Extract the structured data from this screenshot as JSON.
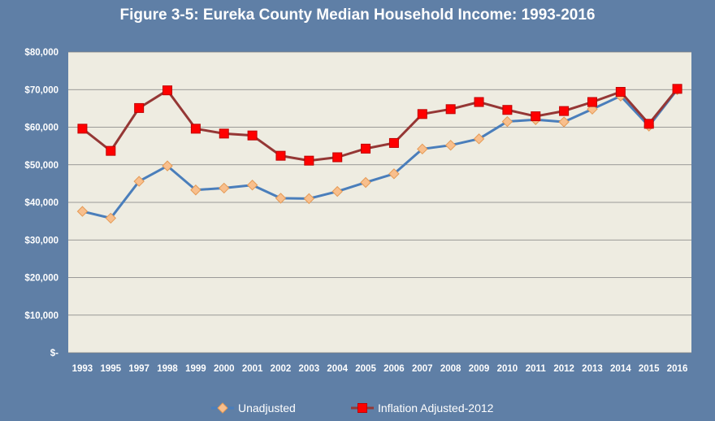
{
  "chart_data": {
    "type": "line",
    "title": "Figure 3-5: Eureka County Median Household Income: 1993-2016",
    "categories": [
      "1993",
      "1995",
      "1997",
      "1998",
      "1999",
      "2000",
      "2001",
      "2002",
      "2003",
      "2004",
      "2005",
      "2006",
      "2007",
      "2008",
      "2009",
      "2010",
      "2011",
      "2012",
      "2013",
      "2014",
      "2015",
      "2016"
    ],
    "y_ticks": [
      "$-",
      "$10,000",
      "$20,000",
      "$30,000",
      "$40,000",
      "$50,000",
      "$60,000",
      "$70,000",
      "$80,000"
    ],
    "ylim": [
      0,
      80000
    ],
    "grid": true,
    "legend_position": "bottom",
    "series": [
      {
        "name": "Unadjusted",
        "line_color": "#4a7ebb",
        "marker": "diamond",
        "marker_fill": "#f8bf8d",
        "marker_stroke": "#e59a55",
        "values": [
          37600,
          35800,
          45600,
          49700,
          43300,
          43800,
          44600,
          41100,
          41000,
          42900,
          45300,
          47600,
          54200,
          55200,
          56900,
          61500,
          62000,
          61400,
          64800,
          68300,
          60300,
          70000
        ]
      },
      {
        "name": "Inflation Adjusted-2012",
        "line_color": "#953735",
        "marker": "square",
        "marker_fill": "#ff0000",
        "marker_stroke": "#c00000",
        "values": [
          59600,
          53700,
          65100,
          69800,
          59600,
          58300,
          57800,
          52400,
          51100,
          52000,
          54300,
          55800,
          63500,
          64800,
          66700,
          64600,
          62900,
          64300,
          66700,
          69400,
          60900,
          70200
        ]
      }
    ],
    "colors": {
      "background": "#5f7fa6",
      "plot_area": "#eeece1",
      "gridline": "#7f7f7f",
      "text": "#ffffff"
    }
  }
}
